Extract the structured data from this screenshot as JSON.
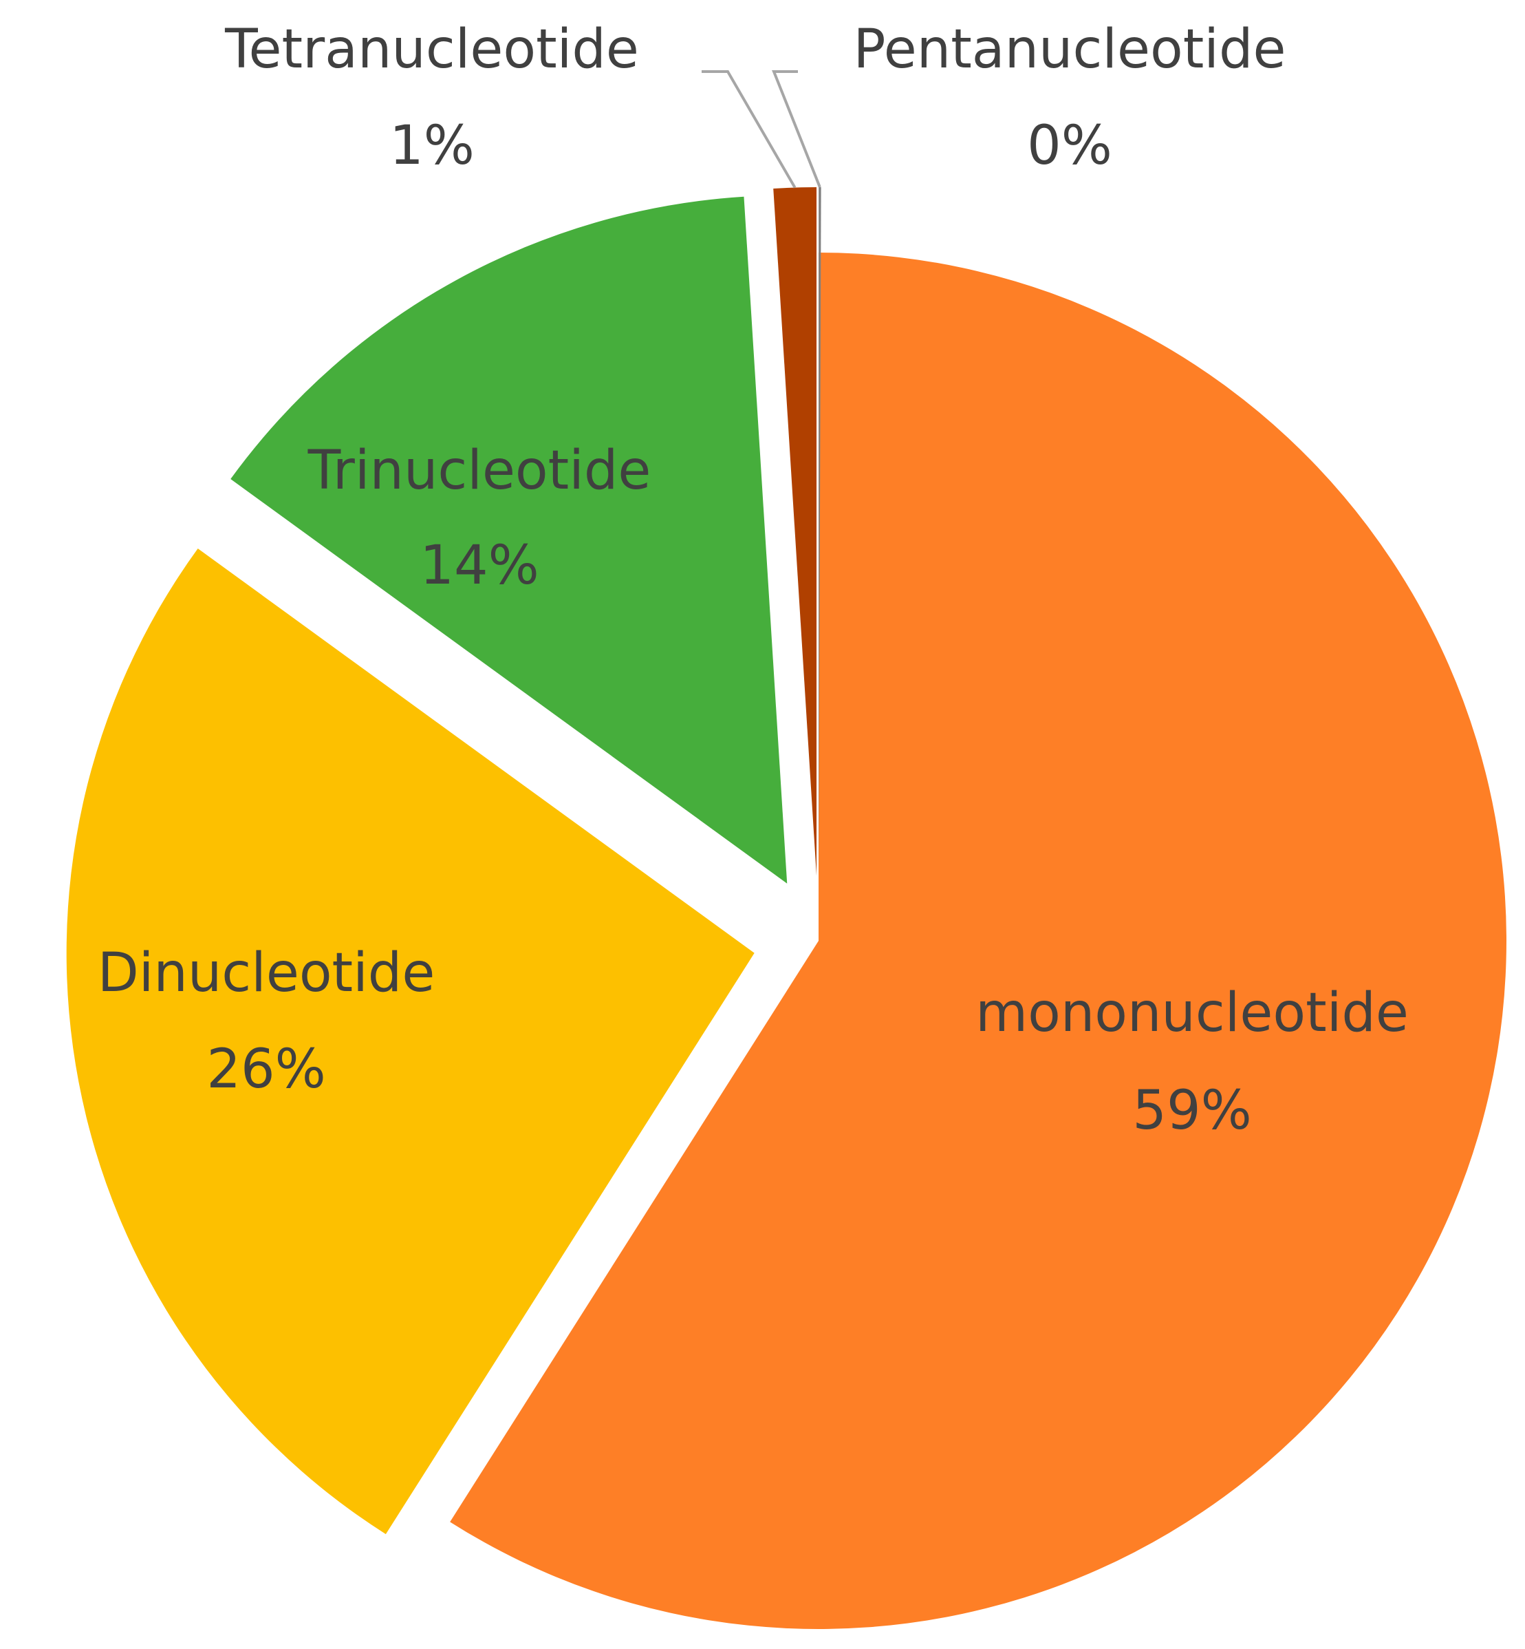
{
  "chart_data": {
    "type": "pie",
    "title": "",
    "start_angle_deg": 0,
    "direction": "clockwise",
    "slices": [
      {
        "name": "mononucleotide",
        "value": 59,
        "label": "59%",
        "color": "#FE7F26",
        "exploded": false
      },
      {
        "name": "Dinucleotide",
        "value": 26,
        "label": "26%",
        "color": "#FDC000",
        "exploded": true
      },
      {
        "name": "Trinucleotide",
        "value": 14,
        "label": "14%",
        "color": "#46AE3C",
        "exploded": true
      },
      {
        "name": "Tetranucleotide",
        "value": 1,
        "label": "1%",
        "color": "#B04000",
        "exploded": true
      },
      {
        "name": "Pentanucleotide",
        "value": 0,
        "label": "0%",
        "color": "#808080",
        "exploded": true
      }
    ],
    "label_style": "category name and percentage",
    "legend": "none"
  }
}
